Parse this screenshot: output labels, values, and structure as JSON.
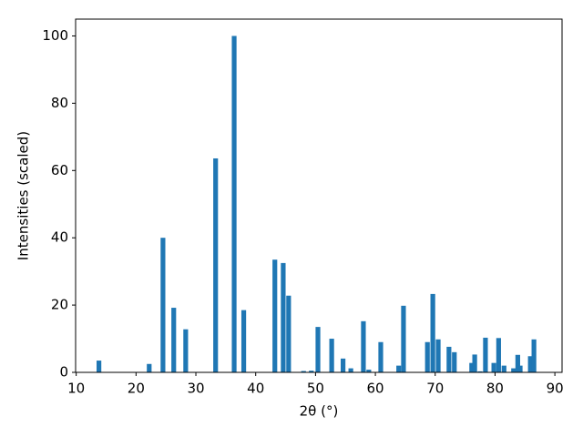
{
  "chart_data": {
    "type": "bar",
    "xlabel": "2θ (°)",
    "ylabel": "Intensities (scaled)",
    "x": [
      13.8,
      22.2,
      24.5,
      26.3,
      28.3,
      33.3,
      36.4,
      38.0,
      43.2,
      44.6,
      45.5,
      48.0,
      49.3,
      50.4,
      52.7,
      54.6,
      55.9,
      58.0,
      58.9,
      60.9,
      63.9,
      64.7,
      68.7,
      69.6,
      70.5,
      72.3,
      73.2,
      76.1,
      76.6,
      77.5,
      78.4,
      79.8,
      80.6,
      81.5,
      83.1,
      83.8,
      84.2,
      85.9,
      86.5
    ],
    "values": [
      3.5,
      2.5,
      40,
      19.2,
      12.8,
      63.6,
      100,
      18.5,
      33.5,
      32.5,
      22.8,
      0.4,
      0.5,
      13.5,
      10,
      4.1,
      1.2,
      15.2,
      0.8,
      9,
      2,
      19.8,
      9,
      23.3,
      9.8,
      7.6,
      6,
      2.8,
      5.3,
      0.3,
      10.3,
      2.8,
      10.2,
      2,
      1.2,
      5.2,
      2,
      4.8,
      9.8
    ],
    "color": "#1f77b4",
    "xlim": [
      9.9,
      91.2
    ],
    "xticks": [
      10,
      20,
      30,
      40,
      50,
      60,
      70,
      80,
      90
    ],
    "ylim": [
      0,
      105
    ],
    "yticks": [
      0,
      20,
      40,
      60,
      80,
      100
    ]
  }
}
